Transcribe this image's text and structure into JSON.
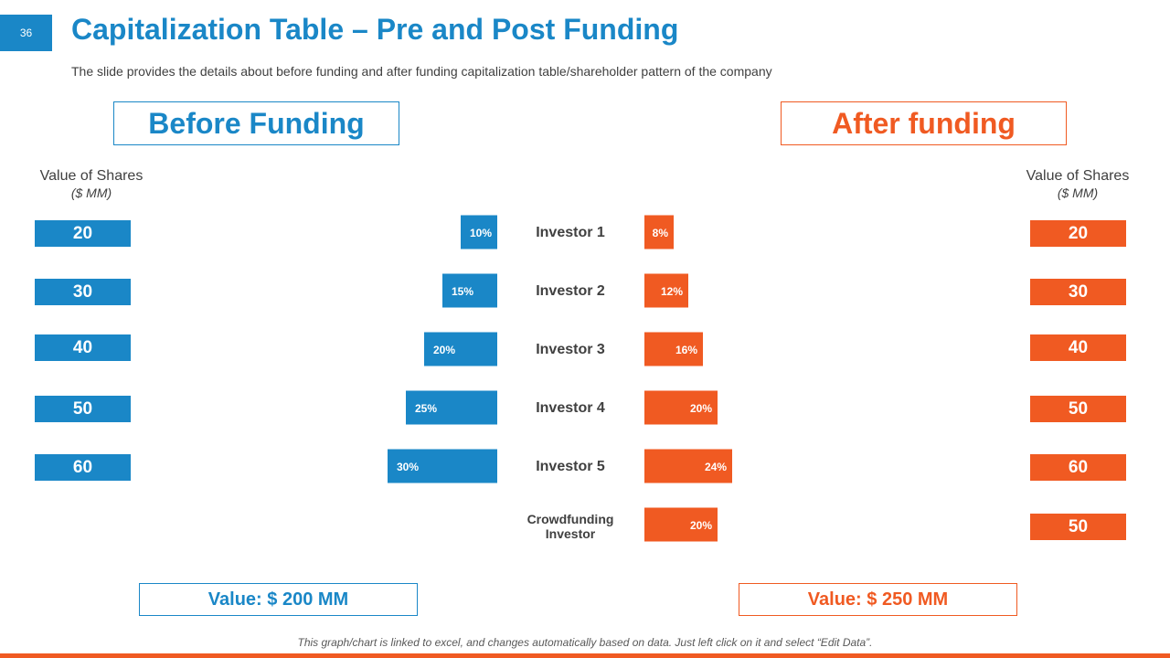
{
  "page_number": "36",
  "title": "Capitalization Table – Pre and Post Funding",
  "subtitle": "The slide provides the details about before funding and after funding capitalization table/shareholder pattern of the company",
  "before": {
    "heading": "Before Funding",
    "value_label": "Value of Shares",
    "value_unit": "($ MM)",
    "total": "Value: $ 200 MM"
  },
  "after": {
    "heading": "After funding",
    "value_label": "Value of Shares",
    "value_unit": "($ MM)",
    "total": "Value: $ 250 MM"
  },
  "footnote": "This graph/chart is linked to excel, and changes automatically based on data. Just left click on it and select “Edit Data”.",
  "colors": {
    "before": "#1a87c7",
    "after": "#f05a22",
    "text": "#404040"
  },
  "chart_data": {
    "type": "bar",
    "categories": [
      "Investor 1",
      "Investor 2",
      "Investor 3",
      "Investor 4",
      "Investor 5",
      "Crowdfunding Investor"
    ],
    "series": [
      {
        "name": "Before Funding",
        "values": [
          10,
          15,
          20,
          25,
          30,
          null
        ],
        "labels": [
          "10%",
          "15%",
          "20%",
          "25%",
          "30%",
          ""
        ],
        "share_values": [
          "20",
          "30",
          "40",
          "50",
          "60",
          ""
        ]
      },
      {
        "name": "After funding",
        "values": [
          8,
          12,
          16,
          20,
          24,
          20
        ],
        "labels": [
          "8%",
          "12%",
          "16%",
          "20%",
          "24%",
          "20%"
        ],
        "share_values": [
          "20",
          "30",
          "40",
          "50",
          "60",
          "50"
        ]
      }
    ]
  }
}
